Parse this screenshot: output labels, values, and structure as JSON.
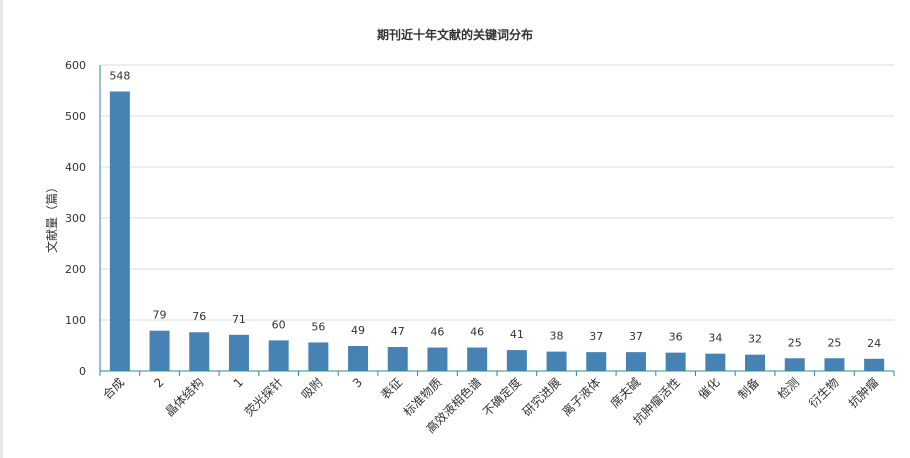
{
  "chart_data": {
    "type": "bar",
    "title": "期刊近十年文献的关键词分布",
    "xlabel": "",
    "ylabel": "文献量（篇）",
    "ylim": [
      0,
      600
    ],
    "yticks": [
      0,
      100,
      200,
      300,
      400,
      500,
      600
    ],
    "grid": true,
    "legend": "none",
    "color": "#4682b4",
    "categories": [
      "合成",
      "2",
      "晶体结构",
      "1",
      "荧光探针",
      "吸附",
      "3",
      "表征",
      "标准物质",
      "高效液相色谱",
      "不确定度",
      "研究进展",
      "离子液体",
      "席夫碱",
      "抗肿瘤活性",
      "催化",
      "制备",
      "检测",
      "衍生物",
      "抗肿瘤"
    ],
    "values": [
      548,
      79,
      76,
      71,
      60,
      56,
      49,
      47,
      46,
      46,
      41,
      38,
      37,
      37,
      36,
      34,
      32,
      25,
      25,
      24
    ]
  }
}
